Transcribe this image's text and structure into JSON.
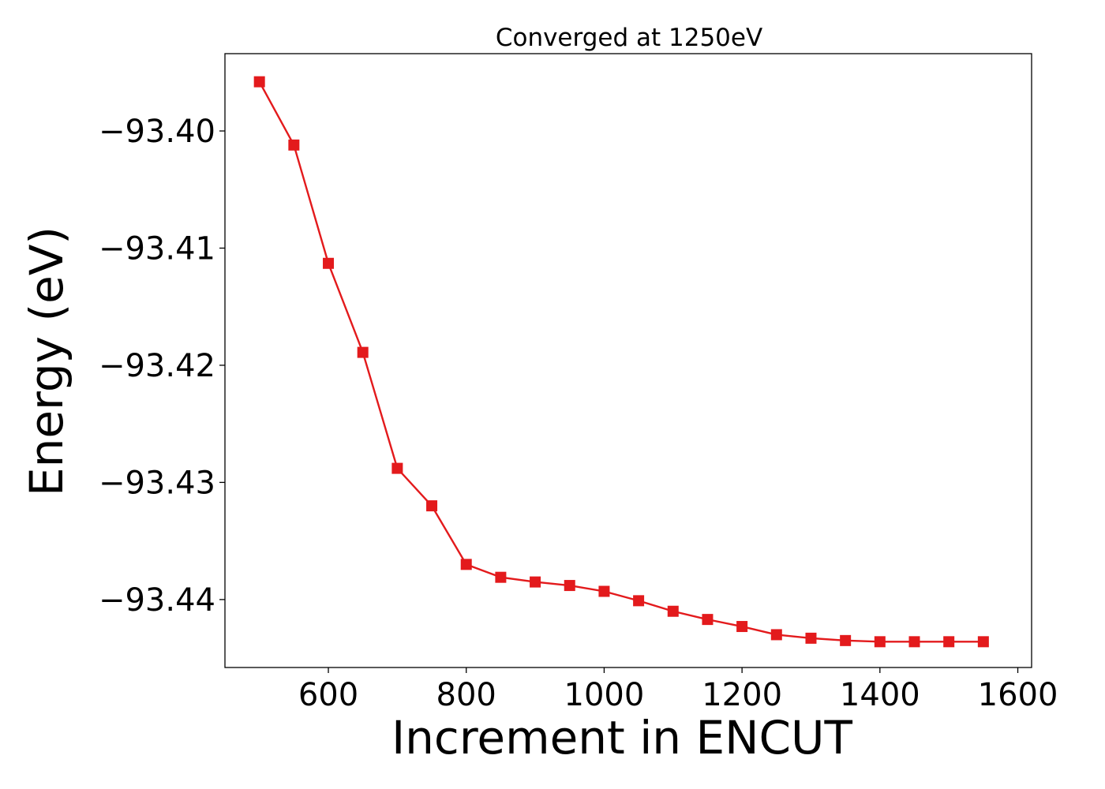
{
  "chart_data": {
    "type": "line",
    "title": "Converged at 1250eV",
    "xlabel": "Increment in ENCUT",
    "ylabel": "Energy (eV)",
    "xlim": [
      450,
      1620
    ],
    "ylim": [
      -93.4458,
      -93.3934
    ],
    "xticks": [
      600,
      800,
      1000,
      1200,
      1400,
      1600
    ],
    "yticks": [
      -93.4,
      -93.41,
      -93.42,
      -93.43,
      -93.44
    ],
    "ytick_labels": [
      "−93.40",
      "−93.41",
      "−93.42",
      "−93.43",
      "−93.44"
    ],
    "grid": false,
    "series": [
      {
        "color": "#e31a1c",
        "marker": "square",
        "x": [
          500,
          550,
          600,
          650,
          700,
          750,
          800,
          850,
          900,
          950,
          1000,
          1050,
          1100,
          1150,
          1200,
          1250,
          1300,
          1350,
          1400,
          1450,
          1500,
          1550
        ],
        "y": [
          -93.3958,
          -93.4012,
          -93.4113,
          -93.4189,
          -93.4288,
          -93.432,
          -93.437,
          -93.4381,
          -93.4385,
          -93.4388,
          -93.4393,
          -93.4401,
          -93.441,
          -93.4417,
          -93.4423,
          -93.443,
          -93.4433,
          -93.4435,
          -93.4436,
          -93.4436,
          -93.4436,
          -93.4436
        ]
      }
    ]
  }
}
